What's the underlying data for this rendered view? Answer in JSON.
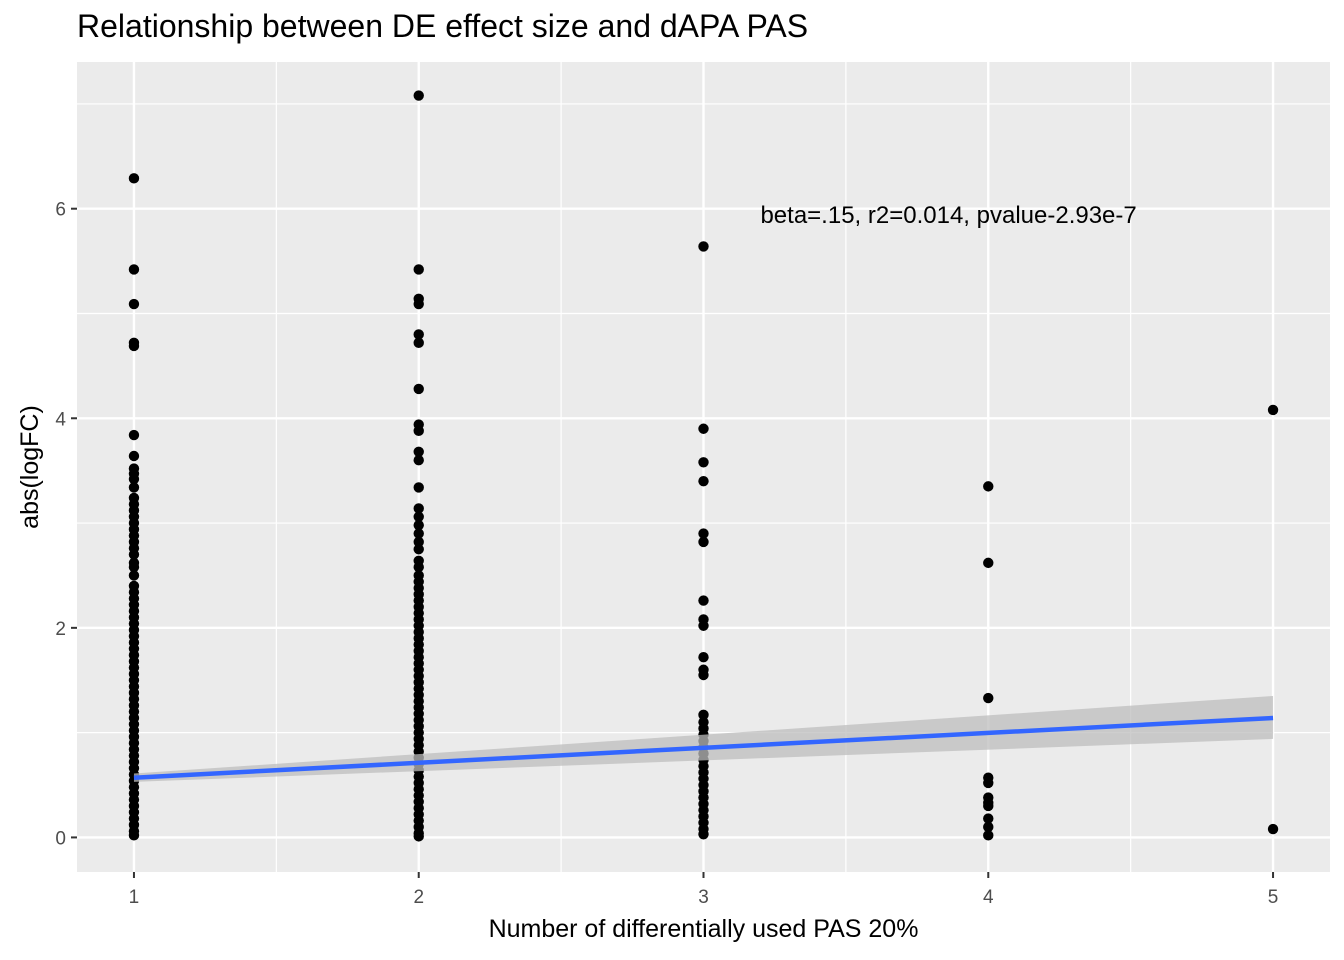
{
  "chart_data": {
    "type": "scatter",
    "title": "Relationship between DE effect size and dAPA PAS",
    "xlabel": "Number of differentially used PAS 20%",
    "ylabel": "abs(logFC)",
    "xlim": [
      0.8,
      5.2
    ],
    "ylim": [
      -0.33,
      7.4
    ],
    "x_ticks": [
      1,
      2,
      3,
      4,
      5
    ],
    "y_ticks": [
      0,
      2,
      4,
      6
    ],
    "grid": true,
    "annotation": {
      "text": "beta=.15, r2=0.014, pvalue-2.93e-7",
      "x": 3.2,
      "y": 5.95
    },
    "points": {
      "x1": [
        6.29,
        5.42,
        5.09,
        4.72,
        4.69,
        3.84,
        3.64,
        3.52,
        3.47,
        3.42,
        3.34,
        3.24,
        3.18,
        3.12,
        3.06,
        3.0,
        2.94,
        2.88,
        2.82,
        2.76,
        2.7,
        2.62,
        2.58,
        2.5,
        2.4,
        2.34,
        2.28,
        2.22,
        2.16,
        2.1,
        2.04,
        1.98,
        1.92,
        1.86,
        1.8,
        1.74,
        1.68,
        1.62,
        1.56,
        1.5,
        1.44,
        1.38,
        1.32,
        1.26,
        1.2,
        1.14,
        1.08,
        1.02,
        0.96,
        0.9,
        0.84,
        0.78,
        0.72,
        0.66,
        0.6,
        0.54,
        0.48,
        0.42,
        0.36,
        0.3,
        0.24,
        0.18,
        0.12,
        0.06,
        0.02
      ],
      "x2": [
        7.08,
        5.42,
        5.14,
        5.09,
        4.8,
        4.72,
        4.28,
        3.94,
        3.88,
        3.68,
        3.6,
        3.34,
        3.14,
        3.06,
        2.98,
        2.9,
        2.82,
        2.75,
        2.64,
        2.58,
        2.5,
        2.44,
        2.38,
        2.32,
        2.26,
        2.2,
        2.14,
        2.08,
        2.02,
        1.96,
        1.9,
        1.84,
        1.78,
        1.72,
        1.66,
        1.6,
        1.54,
        1.48,
        1.42,
        1.36,
        1.3,
        1.24,
        1.18,
        1.12,
        1.06,
        1.0,
        0.94,
        0.88,
        0.82,
        0.76,
        0.7,
        0.64,
        0.58,
        0.52,
        0.46,
        0.4,
        0.34,
        0.28,
        0.22,
        0.16,
        0.1,
        0.04,
        0.01
      ],
      "x3": [
        5.64,
        3.9,
        3.58,
        3.4,
        2.9,
        2.82,
        2.26,
        2.08,
        2.02,
        1.72,
        1.6,
        1.55,
        1.17,
        1.1,
        1.04,
        0.98,
        0.92,
        0.86,
        0.8,
        0.74,
        0.68,
        0.62,
        0.56,
        0.5,
        0.44,
        0.38,
        0.32,
        0.26,
        0.2,
        0.14,
        0.08,
        0.03
      ],
      "x4": [
        3.35,
        2.62,
        1.33,
        0.57,
        0.52,
        0.38,
        0.33,
        0.3,
        0.18,
        0.1,
        0.02
      ],
      "x5": [
        4.08,
        0.08
      ]
    },
    "fit_line": {
      "x": [
        1,
        5
      ],
      "y": [
        0.57,
        1.14
      ],
      "ci_start": [
        0.53,
        0.61
      ],
      "ci_end": [
        0.94,
        1.35
      ]
    },
    "colors": {
      "panel": "#ebebeb",
      "grid": "#ffffff",
      "points": "#000000",
      "fit_line": "#3366ff",
      "ci_band": "#bdbdbd"
    }
  }
}
